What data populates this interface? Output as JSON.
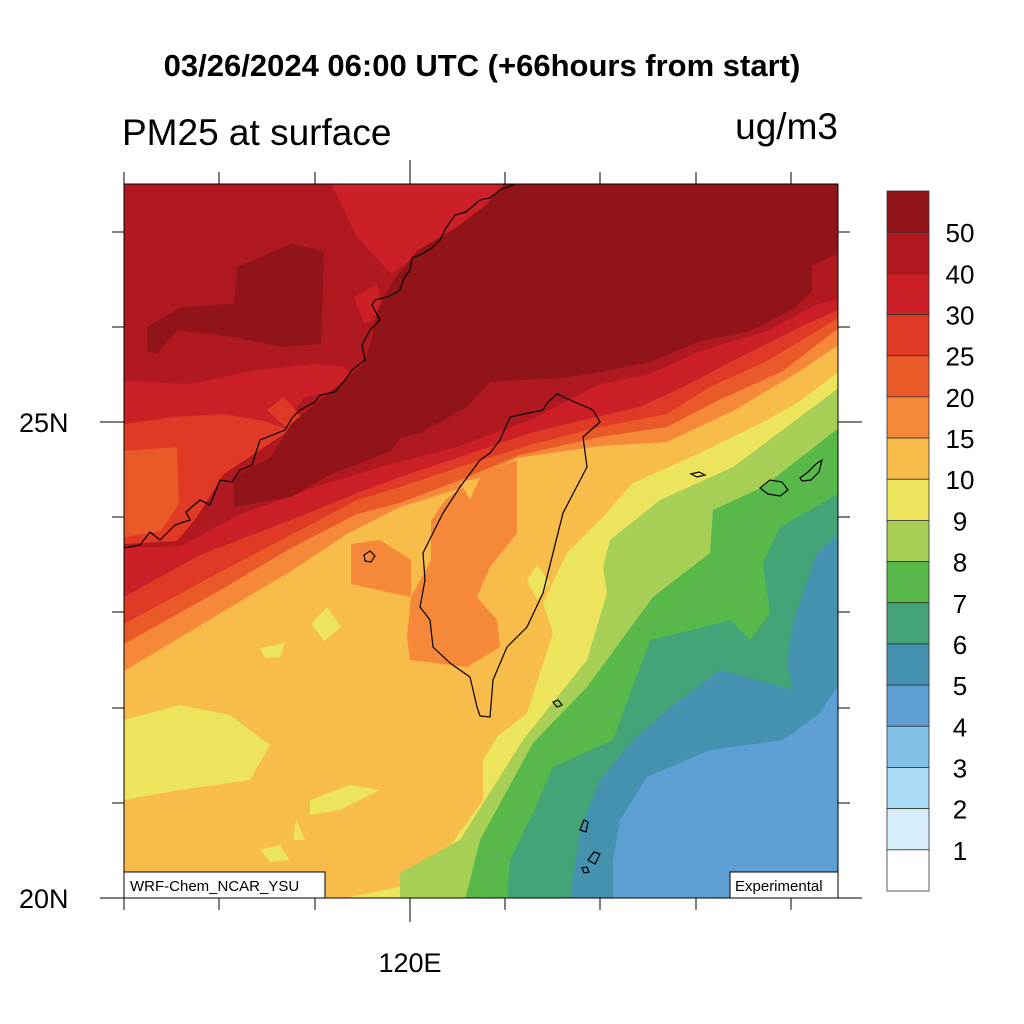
{
  "title": "03/26/2024 06:00 UTC (+66hours from start)",
  "left_title": "PM25 at surface",
  "units": "ug/m3",
  "model_label": "WRF-Chem_NCAR_YSU",
  "status_label": "Experimental",
  "axes": {
    "lat_labels": [
      "25N",
      "20N"
    ],
    "lon_labels": [
      "120E"
    ],
    "lat_range": [
      20,
      27.5
    ],
    "lon_range": [
      117,
      124.5
    ]
  },
  "colorbar": {
    "labels": [
      "50",
      "40",
      "30",
      "25",
      "20",
      "15",
      "10",
      "9",
      "8",
      "7",
      "6",
      "5",
      "4",
      "3",
      "2",
      "1"
    ],
    "colors": [
      "#911419",
      "#B0191F",
      "#CC1F27",
      "#E03A26",
      "#EA5A29",
      "#F6883A",
      "#F8BC4B",
      "#EBE45C",
      "#A8CF55",
      "#58B84A",
      "#45A378",
      "#4592B0",
      "#5FA0D4",
      "#84C1E8",
      "#A9DDF5",
      "#D6EEFA",
      "#FFFFFF"
    ]
  }
}
